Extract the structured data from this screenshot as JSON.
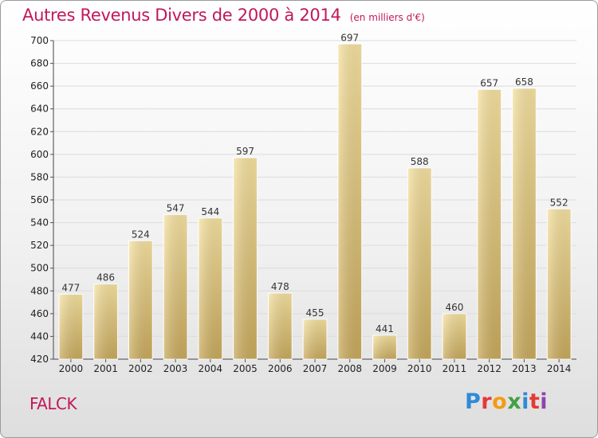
{
  "title": "Autres Revenus Divers de 2000 à 2014",
  "unit_note": "(en milliers d'€)",
  "commune": "FALCK",
  "logo_text": "Proxiti",
  "colors": {
    "title": "#c2185b",
    "bar_light": "#f6e2a0",
    "bar_dark": "#c9aa5c",
    "logo": [
      "#2e8bd6",
      "#e53935",
      "#f39c12",
      "#43a047",
      "#2e8bd6",
      "#e53935",
      "#8e44ad"
    ]
  },
  "chart_data": {
    "type": "bar",
    "categories": [
      "2000",
      "2001",
      "2002",
      "2003",
      "2004",
      "2005",
      "2006",
      "2007",
      "2008",
      "2009",
      "2010",
      "2011",
      "2012",
      "2013",
      "2014"
    ],
    "values": [
      477,
      486,
      524,
      547,
      544,
      597,
      478,
      455,
      697,
      441,
      588,
      460,
      657,
      658,
      552
    ],
    "ylim": [
      420,
      700
    ],
    "yticks": [
      420,
      440,
      460,
      480,
      500,
      520,
      540,
      560,
      580,
      600,
      620,
      640,
      660,
      680,
      700
    ],
    "grid": true,
    "xlabel": "",
    "ylabel": ""
  }
}
